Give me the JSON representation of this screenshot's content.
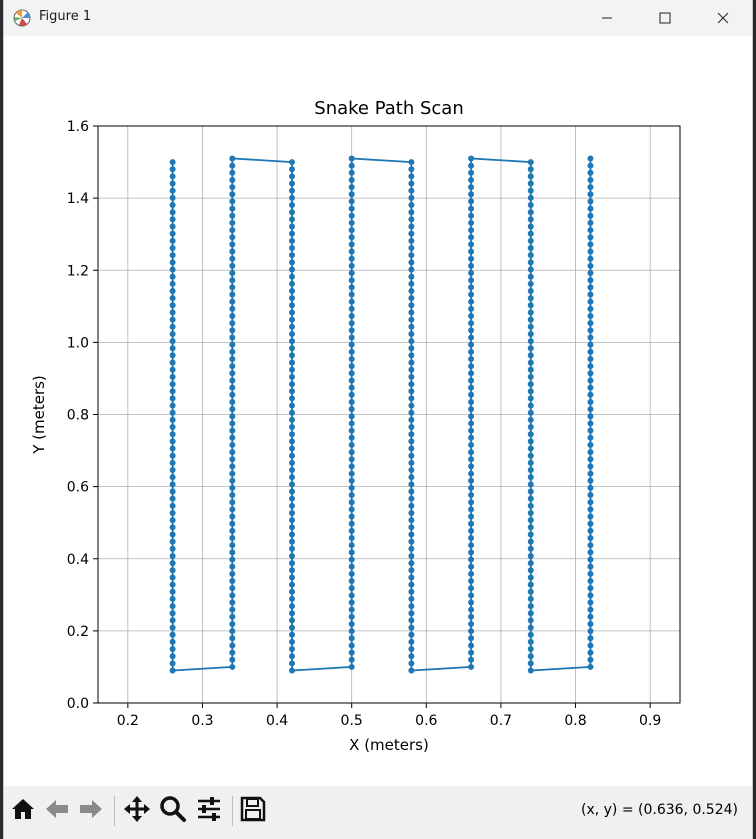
{
  "window": {
    "title": "Figure 1",
    "icons": [
      "matplotlib-icon",
      "minimize-icon",
      "maximize-icon",
      "close-icon"
    ]
  },
  "toolbar": {
    "buttons": [
      "home-icon",
      "back-icon",
      "forward-icon",
      "pan-icon",
      "zoom-icon",
      "configure-subplots-icon",
      "save-icon"
    ],
    "coords_text": "(x, y) = (0.636, 0.524)"
  },
  "chart_data": {
    "type": "line",
    "title": "Snake Path Scan",
    "xlabel": "X (meters)",
    "ylabel": "Y (meters)",
    "xlim": [
      0.16,
      0.94
    ],
    "ylim": [
      0.0,
      1.6
    ],
    "xticks": [
      0.2,
      0.3,
      0.4,
      0.5,
      0.6,
      0.7,
      0.8,
      0.9
    ],
    "yticks": [
      0.0,
      0.2,
      0.4,
      0.6,
      0.8,
      1.0,
      1.2,
      1.4,
      1.6
    ],
    "grid": true,
    "marker": "circle",
    "series_color": "#1f77b4",
    "columns": [
      {
        "x": 0.26,
        "y_start": 1.5,
        "y_end": 0.09
      },
      {
        "x": 0.34,
        "y_start": 0.1,
        "y_end": 1.51
      },
      {
        "x": 0.42,
        "y_start": 1.5,
        "y_end": 0.09
      },
      {
        "x": 0.5,
        "y_start": 0.1,
        "y_end": 1.51
      },
      {
        "x": 0.58,
        "y_start": 1.5,
        "y_end": 0.09
      },
      {
        "x": 0.66,
        "y_start": 0.1,
        "y_end": 1.51
      },
      {
        "x": 0.74,
        "y_start": 1.5,
        "y_end": 0.09
      },
      {
        "x": 0.82,
        "y_start": 0.1,
        "y_end": 1.51
      }
    ],
    "y_step": 0.02
  }
}
